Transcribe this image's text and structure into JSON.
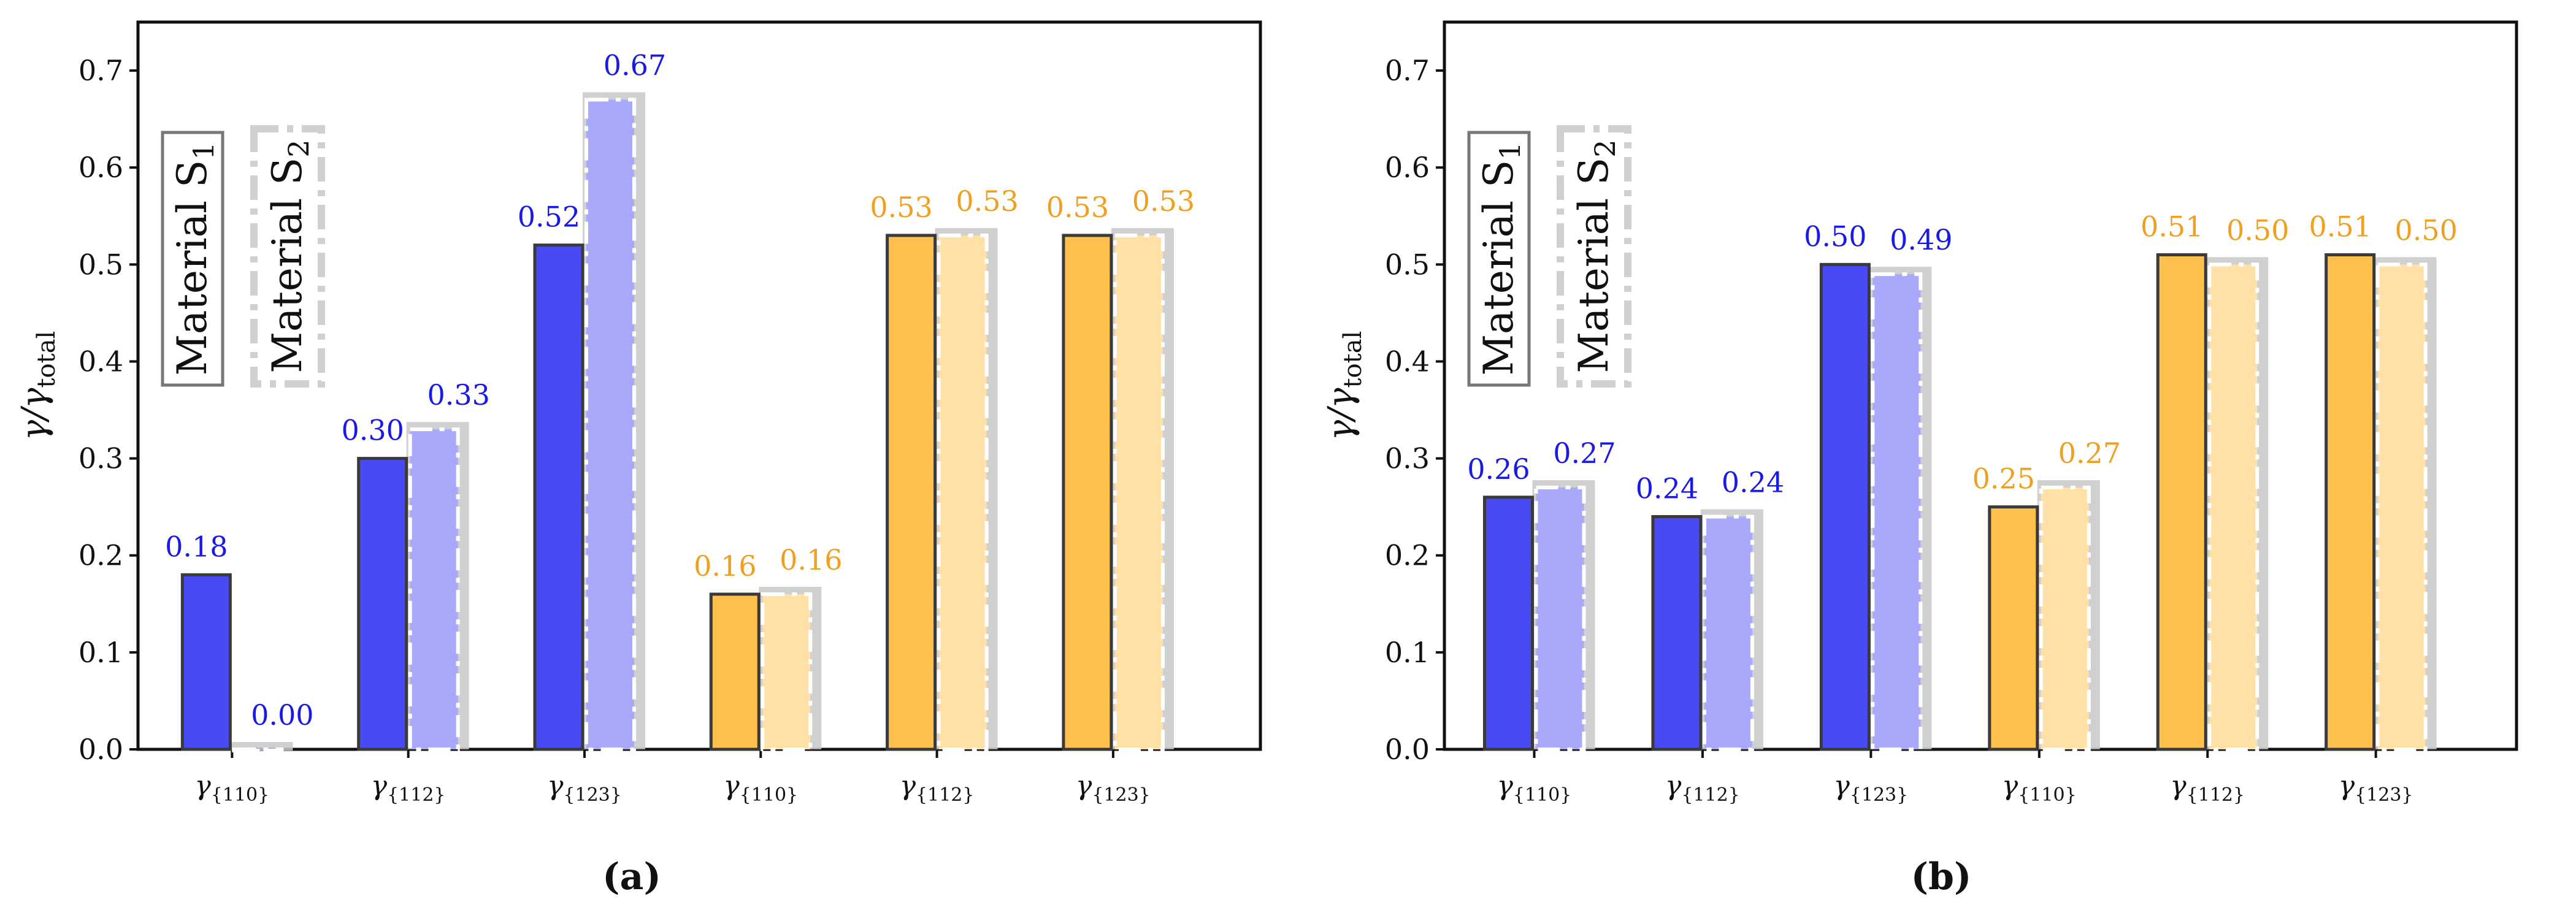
{
  "colors": {
    "blue": "#4a4af5",
    "blue_light": "#a9a9fb",
    "orange": "#ffc04d",
    "orange_light": "#ffe0a6",
    "shadow": "#c8c8c8",
    "blue_text": "#1a1ae6",
    "orange_text": "#f0a020"
  },
  "chart_data": [
    {
      "type": "bar",
      "panel_label": "(a)",
      "ylabel": "γ/γ_total",
      "ylabel_main": "γ/γ",
      "ylabel_sub": "total",
      "ylim": [
        0,
        0.75
      ],
      "yticks": [
        "0.0",
        "0.1",
        "0.2",
        "0.3",
        "0.4",
        "0.5",
        "0.6",
        "0.7"
      ],
      "ytick_values": [
        0.0,
        0.1,
        0.2,
        0.3,
        0.4,
        0.5,
        0.6,
        0.7
      ],
      "categories": [
        "γ{110}",
        "γ{112}",
        "γ{123}",
        "γ{110}",
        "γ{112}",
        "γ{123}"
      ],
      "category_base": [
        "γ",
        "γ",
        "γ",
        "γ",
        "γ",
        "γ"
      ],
      "category_sub": [
        "{110}",
        "{112}",
        "{123}",
        "{110}",
        "{112}",
        "{123}"
      ],
      "category_colors": [
        "blue",
        "blue",
        "blue",
        "orange",
        "orange",
        "orange"
      ],
      "series": [
        {
          "name": "Material S1",
          "values": [
            0.18,
            0.3,
            0.52,
            0.16,
            0.53,
            0.53
          ],
          "labels": [
            "0.18",
            "0.30",
            "0.52",
            "0.16",
            "0.53",
            "0.53"
          ]
        },
        {
          "name": "Material S2",
          "values": [
            0.0,
            0.33,
            0.67,
            0.16,
            0.53,
            0.53
          ],
          "labels": [
            "0.00",
            "0.33",
            "0.67",
            "0.16",
            "0.53",
            "0.53"
          ]
        }
      ],
      "legend": {
        "s1_main": "Material S",
        "s1_sub": "1",
        "s2_main": "Material S",
        "s2_sub": "2"
      }
    },
    {
      "type": "bar",
      "panel_label": "(b)",
      "ylabel": "γ/γ_total",
      "ylabel_main": "γ/γ",
      "ylabel_sub": "total",
      "ylim": [
        0,
        0.75
      ],
      "yticks": [
        "0.0",
        "0.1",
        "0.2",
        "0.3",
        "0.4",
        "0.5",
        "0.6",
        "0.7"
      ],
      "ytick_values": [
        0.0,
        0.1,
        0.2,
        0.3,
        0.4,
        0.5,
        0.6,
        0.7
      ],
      "categories": [
        "γ{110}",
        "γ{112}",
        "γ{123}",
        "γ{110}",
        "γ{112}",
        "γ{123}"
      ],
      "category_base": [
        "γ",
        "γ",
        "γ",
        "γ",
        "γ",
        "γ"
      ],
      "category_sub": [
        "{110}",
        "{112}",
        "{123}",
        "{110}",
        "{112}",
        "{123}"
      ],
      "category_colors": [
        "blue",
        "blue",
        "blue",
        "orange",
        "orange",
        "orange"
      ],
      "series": [
        {
          "name": "Material S1",
          "values": [
            0.26,
            0.24,
            0.5,
            0.25,
            0.51,
            0.51
          ],
          "labels": [
            "0.26",
            "0.24",
            "0.50",
            "0.25",
            "0.51",
            "0.51"
          ]
        },
        {
          "name": "Material S2",
          "values": [
            0.27,
            0.24,
            0.49,
            0.27,
            0.5,
            0.5
          ],
          "labels": [
            "0.27",
            "0.24",
            "0.49",
            "0.27",
            "0.50",
            "0.50"
          ]
        }
      ],
      "legend": {
        "s1_main": "Material S",
        "s1_sub": "1",
        "s2_main": "Material S",
        "s2_sub": "2"
      }
    }
  ]
}
